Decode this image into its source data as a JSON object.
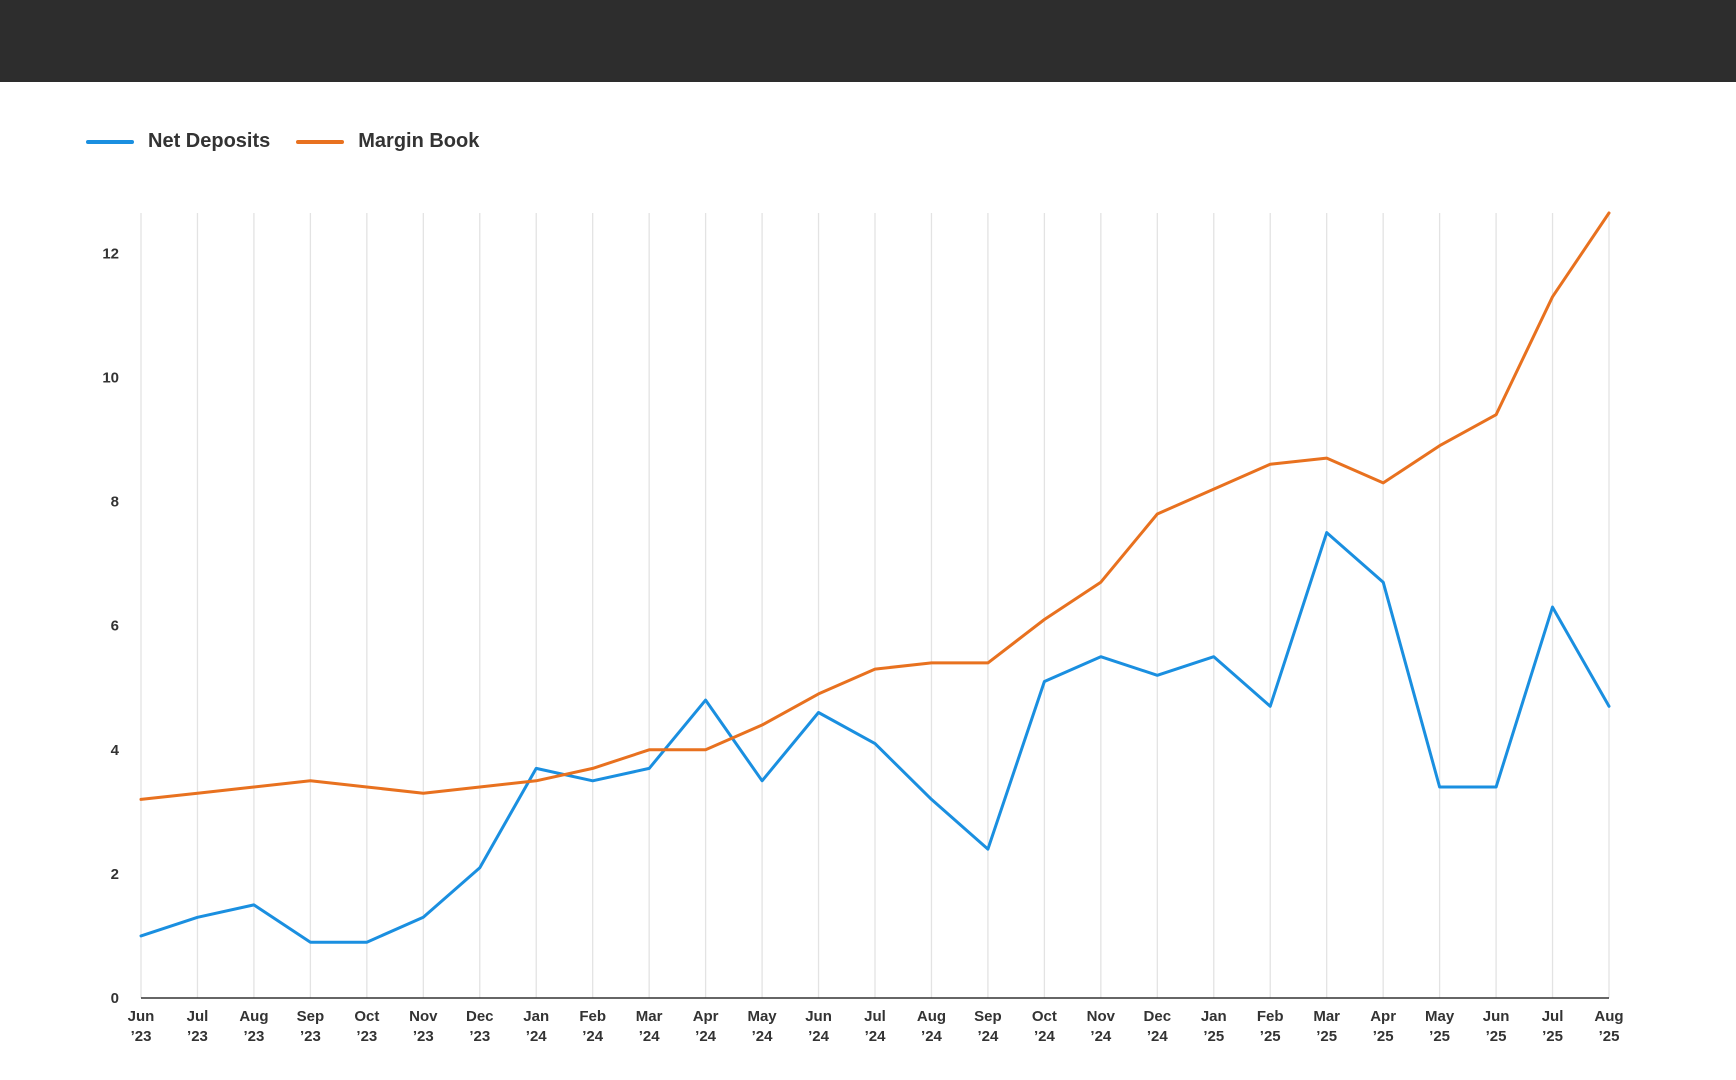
{
  "colors": {
    "net_deposits": "#1a8fe0",
    "margin_book": "#e8711f"
  },
  "legend": [
    {
      "label": "Net Deposits",
      "color": "#1a8fe0"
    },
    {
      "label": "Margin Book",
      "color": "#e8711f"
    }
  ],
  "chart_data": {
    "type": "line",
    "title": "",
    "xlabel": "",
    "ylabel": "",
    "ylim": [
      0,
      12.65
    ],
    "yticks": [
      0,
      2,
      4,
      6,
      8,
      10,
      12
    ],
    "grid": "vertical",
    "legend_position": "top-left",
    "categories": [
      [
        "Jun",
        "’23"
      ],
      [
        "Jul",
        "’23"
      ],
      [
        "Aug",
        "’23"
      ],
      [
        "Sep",
        "’23"
      ],
      [
        "Oct",
        "’23"
      ],
      [
        "Nov",
        "’23"
      ],
      [
        "Dec",
        "’23"
      ],
      [
        "Jan",
        "’24"
      ],
      [
        "Feb",
        "’24"
      ],
      [
        "Mar",
        "’24"
      ],
      [
        "Apr",
        "’24"
      ],
      [
        "May",
        "’24"
      ],
      [
        "Jun",
        "’24"
      ],
      [
        "Jul",
        "’24"
      ],
      [
        "Aug",
        "’24"
      ],
      [
        "Sep",
        "’24"
      ],
      [
        "Oct",
        "’24"
      ],
      [
        "Nov",
        "’24"
      ],
      [
        "Dec",
        "’24"
      ],
      [
        "Jan",
        "’25"
      ],
      [
        "Feb",
        "’25"
      ],
      [
        "Mar",
        "’25"
      ],
      [
        "Apr",
        "’25"
      ],
      [
        "May",
        "’25"
      ],
      [
        "Jun",
        "’25"
      ],
      [
        "Jul",
        "’25"
      ],
      [
        "Aug",
        "’25"
      ]
    ],
    "series": [
      {
        "name": "Net Deposits",
        "color": "#1a8fe0",
        "values": [
          1.0,
          1.3,
          1.5,
          0.9,
          0.9,
          1.3,
          2.1,
          3.7,
          3.5,
          3.7,
          4.8,
          3.5,
          4.6,
          4.1,
          3.2,
          2.4,
          5.1,
          5.5,
          5.2,
          5.5,
          4.7,
          7.5,
          6.7,
          3.4,
          3.4,
          6.3,
          4.7
        ]
      },
      {
        "name": "Margin Book",
        "color": "#e8711f",
        "values": [
          3.2,
          3.3,
          3.4,
          3.5,
          3.4,
          3.3,
          3.4,
          3.5,
          3.7,
          4.0,
          4.0,
          4.4,
          4.9,
          5.3,
          5.4,
          5.4,
          6.1,
          6.7,
          7.8,
          8.2,
          8.6,
          8.7,
          8.3,
          8.9,
          9.4,
          11.3,
          12.65
        ]
      }
    ]
  }
}
